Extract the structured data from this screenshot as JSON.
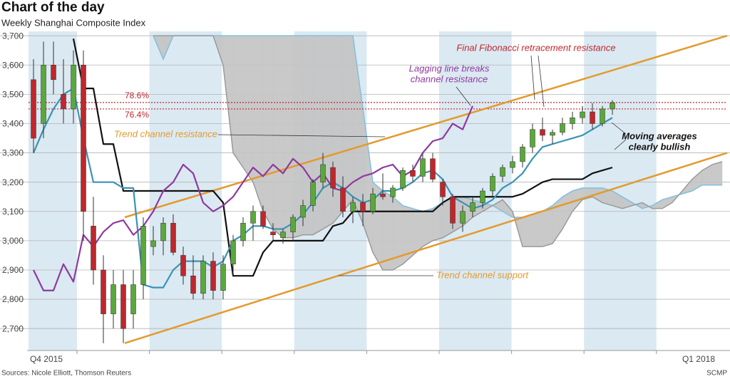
{
  "chart_data": {
    "type": "candlestick",
    "title": "Chart of the day",
    "subtitle": "Weekly Shanghai Composite Index",
    "source": "Sources: Nicole Elliott, Thomson Reuters",
    "credit": "SCMP",
    "quarters": [
      "Q4 2015",
      null,
      null,
      null,
      null,
      null,
      null,
      null,
      null,
      "Q1 2018"
    ],
    "band_color": "#dbe9f2",
    "ylim": [
      2625,
      3715
    ],
    "yticks": [
      {
        "value": 2700,
        "label": "2,700"
      },
      {
        "value": 2800,
        "label": "2,800"
      },
      {
        "value": 2900,
        "label": "2,900"
      },
      {
        "value": 3000,
        "label": "3,000"
      },
      {
        "value": 3100,
        "label": "3,100"
      },
      {
        "value": 3200,
        "label": "3,200"
      },
      {
        "value": 3300,
        "label": "3,300"
      },
      {
        "value": 3400,
        "label": "3,400"
      },
      {
        "value": 3500,
        "label": "3,500"
      },
      {
        "value": 3600,
        "label": "3,600"
      },
      {
        "value": 3700,
        "label": "3,700"
      }
    ],
    "grid": true,
    "up_color": "#5aa83c",
    "down_color": "#c0272d",
    "candles": [
      [
        3550,
        3620,
        3300,
        3350
      ],
      [
        3400,
        3680,
        3350,
        3600
      ],
      [
        3600,
        3680,
        3500,
        3550
      ],
      [
        3500,
        3620,
        3400,
        3450
      ],
      [
        3450,
        3650,
        3400,
        3600
      ],
      [
        3600,
        3650,
        3000,
        3100
      ],
      [
        3050,
        3150,
        2850,
        2900
      ],
      [
        2900,
        2950,
        2650,
        2750
      ],
      [
        2750,
        2900,
        2700,
        2850
      ],
      [
        2850,
        2900,
        2650,
        2700
      ],
      [
        2750,
        2900,
        2700,
        2850
      ],
      [
        2850,
        3080,
        2800,
        3050
      ],
      [
        2980,
        3050,
        2950,
        3000
      ],
      [
        3000,
        3080,
        2950,
        3060
      ],
      [
        3060,
        3090,
        2950,
        2960
      ],
      [
        2950,
        2980,
        2850,
        2880
      ],
      [
        2880,
        2950,
        2800,
        2820
      ],
      [
        2820,
        2950,
        2800,
        2930
      ],
      [
        2930,
        2960,
        2800,
        2830
      ],
      [
        2830,
        2950,
        2800,
        2920
      ],
      [
        2920,
        3020,
        2880,
        3000
      ],
      [
        3000,
        3080,
        2980,
        3060
      ],
      [
        3060,
        3120,
        3000,
        3100
      ],
      [
        3100,
        3120,
        3040,
        3050
      ],
      [
        3030,
        3060,
        3000,
        3020
      ],
      [
        3010,
        3040,
        2990,
        3030
      ],
      [
        3030,
        3090,
        3000,
        3080
      ],
      [
        3080,
        3140,
        3050,
        3120
      ],
      [
        3120,
        3210,
        3100,
        3200
      ],
      [
        3200,
        3300,
        3180,
        3260
      ],
      [
        3250,
        3270,
        3150,
        3180
      ],
      [
        3180,
        3220,
        3080,
        3100
      ],
      [
        3100,
        3150,
        3060,
        3130
      ],
      [
        3130,
        3160,
        3050,
        3100
      ],
      [
        3100,
        3180,
        3090,
        3160
      ],
      [
        3160,
        3230,
        3140,
        3150
      ],
      [
        3150,
        3190,
        3130,
        3180
      ],
      [
        3180,
        3250,
        3170,
        3240
      ],
      [
        3240,
        3260,
        3200,
        3220
      ],
      [
        3220,
        3300,
        3200,
        3280
      ],
      [
        3280,
        3300,
        3200,
        3210
      ],
      [
        3200,
        3210,
        3120,
        3150
      ],
      [
        3150,
        3160,
        3040,
        3060
      ],
      [
        3060,
        3120,
        3030,
        3100
      ],
      [
        3100,
        3150,
        3080,
        3130
      ],
      [
        3130,
        3180,
        3110,
        3170
      ],
      [
        3170,
        3230,
        3150,
        3220
      ],
      [
        3220,
        3260,
        3200,
        3250
      ],
      [
        3250,
        3290,
        3230,
        3270
      ],
      [
        3270,
        3330,
        3250,
        3320
      ],
      [
        3320,
        3400,
        3300,
        3380
      ],
      [
        3380,
        3420,
        3340,
        3360
      ],
      [
        3360,
        3380,
        3330,
        3370
      ],
      [
        3370,
        3420,
        3360,
        3400
      ],
      [
        3400,
        3440,
        3380,
        3420
      ],
      [
        3420,
        3460,
        3400,
        3440
      ],
      [
        3440,
        3470,
        3380,
        3400
      ],
      [
        3400,
        3460,
        3390,
        3450
      ],
      [
        3450,
        3480,
        3430,
        3470
      ]
    ],
    "cloud": {
      "color": "#c4c4c4",
      "line_color": "#7fc1dd",
      "span_a": [
        null,
        null,
        null,
        null,
        null,
        null,
        null,
        null,
        null,
        null,
        null,
        null,
        3700,
        3620,
        3700,
        3700,
        3700,
        3700,
        3700,
        3700,
        3700,
        3700,
        3700,
        3700,
        3700,
        3700,
        3700,
        3700,
        3700,
        3700,
        3700,
        3700,
        3700,
        3450,
        3200,
        3170,
        3150,
        3120,
        3110,
        3100,
        3110,
        3130,
        3150,
        3150,
        3140,
        3130,
        3120,
        3100,
        3080,
        3080,
        3090,
        3100,
        3120,
        3150,
        3170,
        3180,
        3180,
        3180,
        3170,
        3150,
        3130,
        3110,
        3120,
        3140,
        3150,
        3160,
        3170,
        3190,
        3190,
        3190
      ],
      "span_b": [
        null,
        null,
        null,
        null,
        null,
        null,
        null,
        null,
        null,
        null,
        null,
        null,
        3700,
        3700,
        3700,
        3700,
        3700,
        3700,
        3700,
        3600,
        3300,
        3250,
        3200,
        3100,
        3040,
        3010,
        3010,
        3020,
        3020,
        3040,
        3060,
        3100,
        3140,
        3060,
        2960,
        2900,
        2900,
        2920,
        2950,
        2980,
        3000,
        3010,
        3030,
        3050,
        3080,
        3100,
        3120,
        3140,
        3100,
        2980,
        2980,
        2980,
        2990,
        3040,
        3100,
        3140,
        3150,
        3130,
        3120,
        3110,
        3120,
        3130,
        3110,
        3110,
        3130,
        3170,
        3210,
        3240,
        3260,
        3270
      ]
    },
    "lines": [
      {
        "color": "#111111",
        "values": [
          null,
          null,
          null,
          null,
          3690,
          3520,
          3520,
          3330,
          3330,
          3170,
          3170,
          3170,
          3170,
          3170,
          3170,
          3170,
          3170,
          3170,
          3170,
          3130,
          2880,
          2880,
          2880,
          2960,
          3000,
          3000,
          3000,
          3000,
          3000,
          3000,
          3050,
          3060,
          3100,
          3100,
          3100,
          3100,
          3100,
          3100,
          3100,
          3100,
          3100,
          3130,
          3150,
          3150,
          3150,
          3150,
          3150,
          3150,
          3150,
          3160,
          3180,
          3200,
          3210,
          3210,
          3210,
          3210,
          3230,
          3240,
          3250
        ]
      },
      {
        "color": "#3a93b5",
        "values": [
          3300,
          3380,
          3450,
          3500,
          3520,
          3350,
          3200,
          3200,
          3200,
          3180,
          3180,
          2850,
          2840,
          2840,
          2900,
          2930,
          2930,
          2930,
          2910,
          2930,
          3000,
          3020,
          3050,
          3050,
          3040,
          3040,
          3060,
          3090,
          3130,
          3180,
          3200,
          3180,
          3150,
          3130,
          3140,
          3170,
          3170,
          3180,
          3200,
          3230,
          3240,
          3210,
          3150,
          3130,
          3110,
          3120,
          3140,
          3180,
          3200,
          3230,
          3280,
          3320,
          3330,
          3340,
          3350,
          3360,
          3380,
          3400,
          3420
        ]
      },
      {
        "color": "#8e3a9e",
        "values": [
          2900,
          2830,
          2830,
          2920,
          2860,
          3020,
          2980,
          3030,
          3060,
          3070,
          3020,
          3050,
          3100,
          3170,
          3200,
          3260,
          3230,
          3130,
          3100,
          3120,
          3150,
          3200,
          3250,
          3220,
          3260,
          3230,
          3280,
          3250,
          3200,
          3230,
          3180,
          3170,
          3200,
          3220,
          3230,
          3250,
          3260,
          3220,
          3240,
          3300,
          3340,
          3350,
          3400,
          3380,
          3460
        ]
      }
    ],
    "fib_levels": [
      {
        "label": "78.6%",
        "value": 3472,
        "color": "#c0272d"
      },
      {
        "label": "76.4%",
        "value": 3450,
        "color": "#c0272d"
      }
    ],
    "annotations": [
      {
        "text": [
          "Final Fibonacci retracement resistance"
        ],
        "color": "#c0272d"
      },
      {
        "text": [
          "Lagging line breaks",
          "channel resistance"
        ],
        "color": "#8e3a9e"
      },
      {
        "text": [
          "Trend channel resistance"
        ],
        "color": "#e39a2d"
      },
      {
        "text": [
          "Trend channel support"
        ],
        "color": "#e39a2d"
      },
      {
        "text": [
          "Moving averages",
          "clearly bullish"
        ],
        "color": "#111111"
      }
    ]
  }
}
